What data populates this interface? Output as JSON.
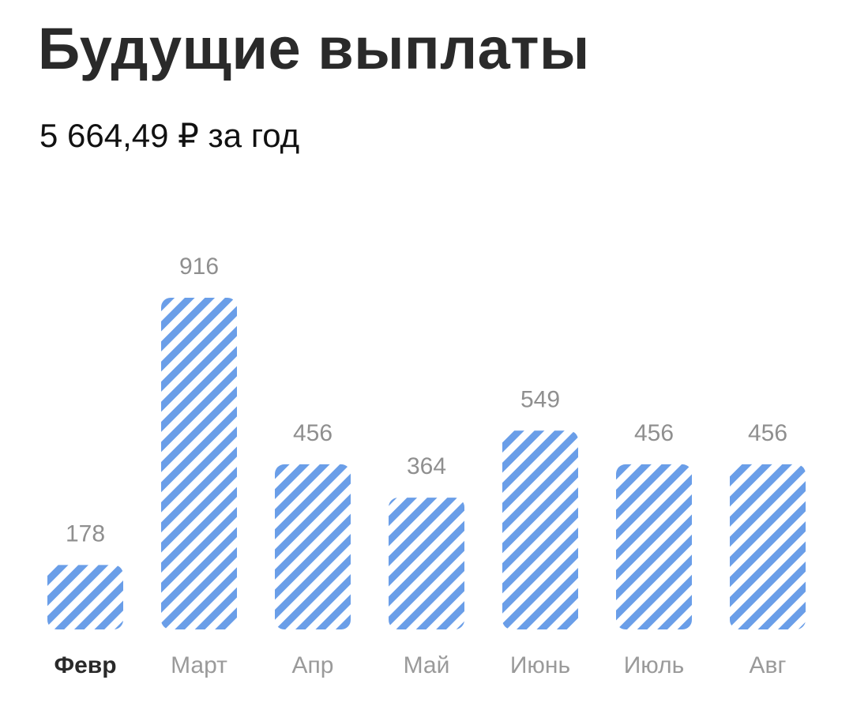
{
  "header": {
    "title": "Будущие выплаты",
    "subtitle": "5 664,49 ₽ за год"
  },
  "colors": {
    "stripe": "#6a9ee8",
    "bar_bg": "#ffffff",
    "value_label": "#8f8f8f",
    "month_label": "#9a9a9a",
    "month_label_active": "#2a2a2a"
  },
  "chart_data": {
    "type": "bar",
    "title": "",
    "xlabel": "",
    "ylabel": "",
    "categories": [
      "Февр",
      "Март",
      "Апр",
      "Май",
      "Июнь",
      "Июль",
      "Авг"
    ],
    "values": [
      178,
      916,
      456,
      364,
      549,
      456,
      456
    ],
    "value_labels": [
      "178",
      "916",
      "456",
      "364",
      "549",
      "456",
      "456"
    ],
    "selected_category": "Февр",
    "bar_style": "diagonal-striped",
    "grid": false,
    "ylim": [
      0,
      916
    ]
  }
}
